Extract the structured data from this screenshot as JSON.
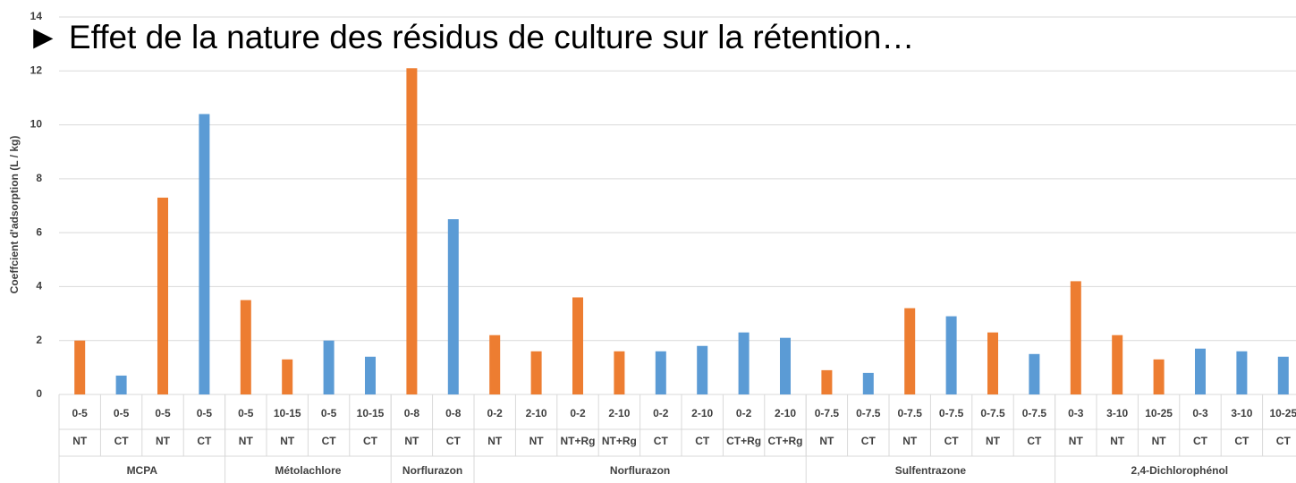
{
  "chart_data": {
    "type": "bar",
    "title": "► Effet de la nature des résidus de culture sur la rétention…",
    "y_label": "Coeffcient d'adsorption (L / kg)",
    "categories": [
      "0-5",
      "0-5",
      "0-5",
      "0-5",
      "0-5",
      "10-15",
      "0-5",
      "10-15",
      "0-8",
      "0-8",
      "0-2",
      "2-10",
      "0-2",
      "2-10",
      "0-2",
      "2-10",
      "0-2",
      "2-10",
      "0-7.5",
      "0-7.5",
      "0-7.5",
      "0-7.5",
      "0-7.5",
      "0-7.5",
      "0-3",
      "3-10",
      "10-25",
      "0-3",
      "3-10",
      "10-25"
    ],
    "categories2": [
      "NT",
      "CT",
      "NT",
      "CT",
      "NT",
      "NT",
      "CT",
      "CT",
      "NT",
      "CT",
      "NT",
      "NT",
      "NT+Rg",
      "NT+Rg",
      "CT",
      "CT",
      "CT+Rg",
      "CT+Rg",
      "NT",
      "CT",
      "NT",
      "CT",
      "NT",
      "CT",
      "NT",
      "NT",
      "NT",
      "CT",
      "CT",
      "CT"
    ],
    "groups": [
      {
        "name": "MCPA",
        "size": 4
      },
      {
        "name": "Métolachlore",
        "size": 4
      },
      {
        "name": "Norflurazon",
        "size": 2
      },
      {
        "name": "Norflurazon",
        "size": 8
      },
      {
        "name": "Sulfentrazone",
        "size": 6
      },
      {
        "name": "2,4-Dichlorophénol",
        "size": 6
      }
    ],
    "values": [
      2.0,
      0.7,
      7.3,
      10.4,
      3.5,
      1.3,
      2.0,
      1.4,
      12.1,
      6.5,
      2.2,
      1.6,
      3.6,
      1.6,
      1.6,
      1.8,
      2.3,
      2.1,
      0.9,
      0.8,
      3.2,
      2.9,
      2.3,
      1.5,
      4.2,
      2.2,
      1.3,
      1.7,
      1.6,
      1.4
    ],
    "colors": [
      "#ed7d31",
      "#5b9bd5",
      "#ed7d31",
      "#5b9bd5",
      "#ed7d31",
      "#ed7d31",
      "#5b9bd5",
      "#5b9bd5",
      "#ed7d31",
      "#5b9bd5",
      "#ed7d31",
      "#ed7d31",
      "#ed7d31",
      "#ed7d31",
      "#5b9bd5",
      "#5b9bd5",
      "#5b9bd5",
      "#5b9bd5",
      "#ed7d31",
      "#5b9bd5",
      "#ed7d31",
      "#5b9bd5",
      "#ed7d31",
      "#5b9bd5",
      "#ed7d31",
      "#ed7d31",
      "#ed7d31",
      "#5b9bd5",
      "#5b9bd5",
      "#5b9bd5"
    ],
    "ylim": [
      0,
      14
    ],
    "yticks": [
      0,
      2,
      4,
      6,
      8,
      10,
      12,
      14
    ],
    "grid": true
  }
}
